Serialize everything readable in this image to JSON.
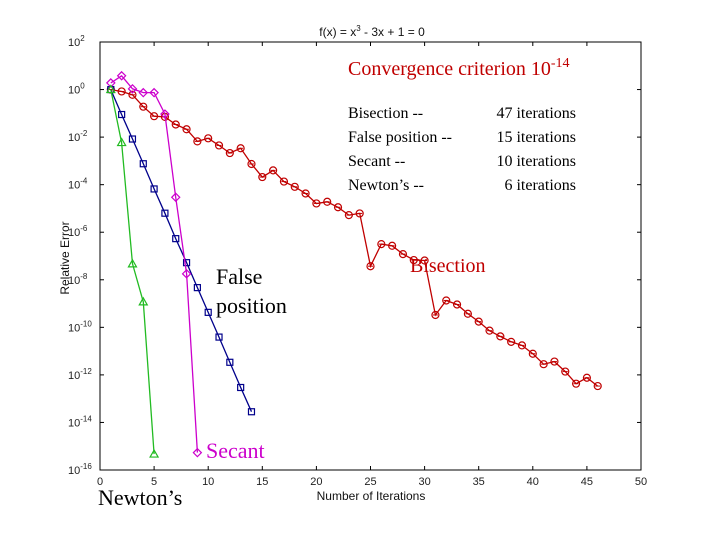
{
  "chart_data": {
    "type": "line",
    "title": "f(x) = x3 - 3x + 1 = 0",
    "title_parts": {
      "prefix": "f(x) = x",
      "exp": "3",
      "suffix": " - 3x + 1 = 0"
    },
    "xlabel": "Number of Iterations",
    "ylabel": "Relative Error",
    "xlim": [
      0,
      50
    ],
    "ylim_exp": [
      -16,
      2
    ],
    "yscale": "log",
    "x_ticks": [
      "0",
      "5",
      "10",
      "15",
      "20",
      "25",
      "30",
      "35",
      "40",
      "45",
      "50"
    ],
    "y_ticks": [
      {
        "base": "10",
        "exp": "2",
        "value": 2
      },
      {
        "base": "10",
        "exp": "0",
        "value": 0
      },
      {
        "base": "10",
        "exp": "-2",
        "value": -2
      },
      {
        "base": "10",
        "exp": "-4",
        "value": -4
      },
      {
        "base": "10",
        "exp": "-6",
        "value": -6
      },
      {
        "base": "10",
        "exp": "-8",
        "value": -8
      },
      {
        "base": "10",
        "exp": "-10",
        "value": -10
      },
      {
        "base": "10",
        "exp": "-12",
        "value": -12
      },
      {
        "base": "10",
        "exp": "-14",
        "value": -14
      },
      {
        "base": "10",
        "exp": "-16",
        "value": -16
      }
    ],
    "series": [
      {
        "name": "Bisection",
        "color": "#c00000",
        "marker": "circle",
        "x": [
          1,
          2,
          3,
          4,
          5,
          6,
          7,
          8,
          9,
          10,
          11,
          12,
          13,
          14,
          15,
          16,
          17,
          18,
          19,
          20,
          21,
          22,
          23,
          24,
          25,
          26,
          27,
          28,
          29,
          30,
          31,
          32,
          33,
          34,
          35,
          36,
          37,
          38,
          39,
          40,
          41,
          42,
          43,
          44,
          45,
          46
        ],
        "log10_y": [
          0.0,
          -0.08,
          -0.22,
          -0.72,
          -1.12,
          -1.15,
          -1.47,
          -1.67,
          -2.18,
          -2.05,
          -2.35,
          -2.67,
          -2.47,
          -3.13,
          -3.68,
          -3.4,
          -3.87,
          -4.09,
          -4.37,
          -4.79,
          -4.72,
          -4.95,
          -5.28,
          -5.21,
          -7.43,
          -6.5,
          -6.57,
          -6.92,
          -7.17,
          -7.19,
          -9.48,
          -8.87,
          -9.04,
          -9.43,
          -9.76,
          -10.14,
          -10.38,
          -10.61,
          -10.76,
          -11.11,
          -11.55,
          -11.44,
          -11.86,
          -12.37,
          -12.12,
          -12.47
        ]
      },
      {
        "name": "False position",
        "color": "#00008b",
        "marker": "square",
        "x": [
          1,
          2,
          3,
          4,
          5,
          6,
          7,
          8,
          9,
          10,
          11,
          12,
          13,
          14
        ],
        "log10_y": [
          0.0,
          -1.05,
          -2.08,
          -3.12,
          -4.18,
          -5.2,
          -6.27,
          -7.28,
          -8.33,
          -9.37,
          -10.41,
          -11.47,
          -12.53,
          -13.55
        ]
      },
      {
        "name": "Secant",
        "color": "#cc00cc",
        "marker": "diamond",
        "x": [
          1,
          2,
          3,
          4,
          5,
          6,
          7,
          8,
          9
        ],
        "log10_y": [
          0.28,
          0.58,
          0.03,
          -0.13,
          -0.13,
          -1.03,
          -4.53,
          -7.75,
          -15.27
        ]
      },
      {
        "name": "Newton's",
        "color": "#22bb22",
        "marker": "triangle",
        "x": [
          1,
          2,
          3,
          4,
          5
        ],
        "log10_y": [
          0.0,
          -2.23,
          -7.33,
          -8.93,
          -15.33
        ]
      }
    ]
  },
  "annotations": {
    "criterion_text": "Convergence criterion 10",
    "criterion_exp": "-14",
    "summary": [
      {
        "label": "Bisection --",
        "value": "47 iterations"
      },
      {
        "label": "False position --",
        "value": "15 iterations"
      },
      {
        "label": "Secant --",
        "value": "10 iterations"
      },
      {
        "label": "Newton’s --",
        "value": "6 iterations"
      }
    ],
    "label_bisection": "Bisection",
    "label_false_line1": "False",
    "label_false_line2": "position",
    "label_secant": "Secant",
    "label_newton": "Newton’s"
  }
}
